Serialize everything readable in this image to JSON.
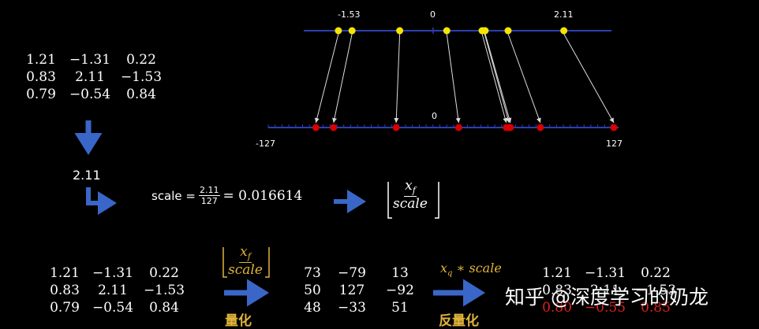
{
  "top_line": {
    "labels": {
      "min": "-1.53",
      "zero": "0",
      "max": "2.11"
    },
    "points": [
      -1.53,
      -1.31,
      -0.54,
      0.22,
      0.79,
      0.83,
      0.84,
      1.21,
      2.11
    ],
    "color": "#f5e500",
    "line_color": "#2c3fb0"
  },
  "bottom_line": {
    "labels": {
      "min": "-127",
      "zero": "0",
      "max": "127"
    },
    "points": [
      -92,
      -79,
      -33,
      13,
      48,
      50,
      51,
      73,
      127
    ],
    "color": "#d60000"
  },
  "input_matrix": [
    [
      "1.21",
      "−1.31",
      "0.22"
    ],
    [
      "0.83",
      "2.11",
      "−1.53"
    ],
    [
      "0.79",
      "−0.54",
      "0.84"
    ]
  ],
  "max_abs": "2.11",
  "scale_formula": {
    "prefix": "scale =",
    "num": "2.11",
    "den": "127",
    "result": "= 0.016614"
  },
  "floor_top": {
    "num": "x",
    "num_sub": "f",
    "den": "scale"
  },
  "bottom": {
    "input_matrix": [
      [
        "1.21",
        "−1.31",
        "0.22"
      ],
      [
        "0.83",
        "2.11",
        "−1.53"
      ],
      [
        "0.79",
        "−0.54",
        "0.84"
      ]
    ],
    "quant_formula": {
      "num": "x",
      "num_sub": "f",
      "den": "scale"
    },
    "quant_label": "量化",
    "quant_matrix": [
      [
        "73",
        "−79",
        "13"
      ],
      [
        "50",
        "127",
        "−92"
      ],
      [
        "48",
        "−33",
        "51"
      ]
    ],
    "dequant_formula": {
      "x": "x",
      "sub": "q",
      "rest": " ∗ scale"
    },
    "dequant_label": "反量化",
    "dequant_matrix": [
      [
        "1.21",
        "−1.31",
        "0.22"
      ],
      [
        "0.83",
        "2.11",
        "−1.53"
      ],
      [
        "0.80",
        "−0.55",
        "0.85"
      ]
    ]
  },
  "watermark": "知乎 @深度学习的奶龙",
  "colors": {
    "arrow_blue": "#3a66c8",
    "gold": "#e2b43a",
    "red": "#e0211c",
    "blue_line": "#2c3fb0"
  }
}
